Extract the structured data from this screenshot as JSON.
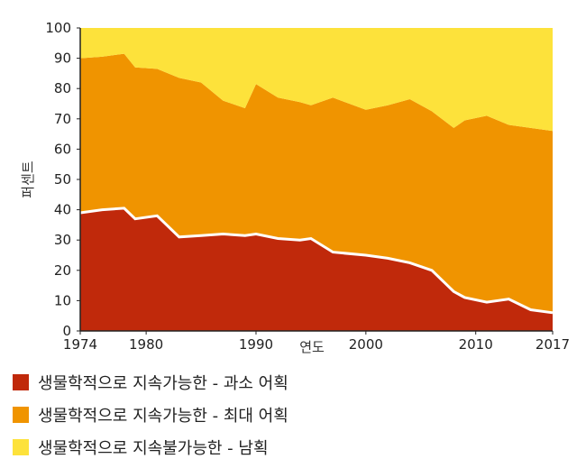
{
  "chart_data": {
    "type": "area",
    "stacked": true,
    "xlabel": "연도",
    "ylabel": "퍼센트",
    "xlim": [
      1974,
      2017
    ],
    "ylim": [
      0,
      100
    ],
    "x_ticks": [
      1974,
      1980,
      1990,
      2000,
      2010,
      2017
    ],
    "y_ticks": [
      0,
      10,
      20,
      30,
      40,
      50,
      60,
      70,
      80,
      90,
      100
    ],
    "x": [
      1974,
      1976,
      1978,
      1979,
      1981,
      1983,
      1985,
      1987,
      1989,
      1990,
      1992,
      1994,
      1995,
      1997,
      2000,
      2002,
      2004,
      2006,
      2008,
      2009,
      2011,
      2013,
      2015,
      2017
    ],
    "series": [
      {
        "name": "생물학적으로 지속가능한 - 과소 어획",
        "color": "#c0290b",
        "values": [
          39,
          40,
          40.5,
          37,
          38,
          31,
          31.5,
          32,
          31.5,
          32,
          30.5,
          30,
          30.5,
          26,
          25,
          24,
          22.5,
          20,
          13,
          11,
          9.5,
          10.5,
          7,
          6
        ]
      },
      {
        "name": "생물학적으로 지속가능한 - 최대 어획",
        "color": "#f09400",
        "values": [
          51,
          50.5,
          51,
          50,
          48.5,
          52.5,
          50.5,
          44,
          42,
          49.5,
          46.5,
          45.5,
          44,
          51,
          48,
          50.5,
          54,
          52.5,
          54,
          58.5,
          61.5,
          57.5,
          60,
          60
        ]
      },
      {
        "name": "생물학적으로 지속불가능한 - 남획",
        "color": "#fde23b",
        "values": [
          10,
          9.5,
          8.5,
          13,
          13.5,
          16.5,
          18,
          24,
          26.5,
          18.5,
          23,
          24.5,
          25.5,
          23,
          27,
          25.5,
          23.5,
          27.5,
          33,
          30.5,
          29,
          32,
          33,
          34
        ]
      }
    ],
    "boundary_line_color": "#ffffff",
    "grid": false,
    "legend_position": "bottom"
  }
}
